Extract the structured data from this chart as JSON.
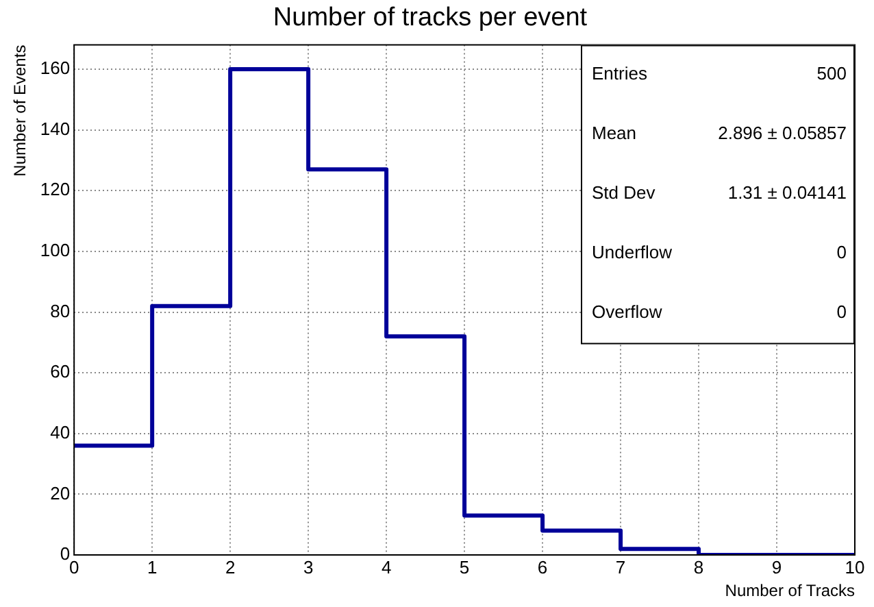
{
  "chart_data": {
    "type": "histogram",
    "title": "Number of tracks per event",
    "xlabel": "Number of Tracks",
    "ylabel": "Number of Events",
    "bins": [
      0,
      1,
      2,
      3,
      4,
      5,
      6,
      7,
      8,
      9,
      10
    ],
    "values": [
      36,
      82,
      160,
      127,
      72,
      13,
      8,
      2,
      0,
      0
    ],
    "color": "#000099",
    "xlim": [
      0,
      10
    ],
    "xticks": [
      0,
      1,
      2,
      3,
      4,
      5,
      6,
      7,
      8,
      9,
      10
    ],
    "ylim": [
      0,
      168
    ],
    "yticks": [
      0,
      20,
      40,
      60,
      80,
      100,
      120,
      140,
      160
    ],
    "grid": true,
    "annotations": [
      "Entries",
      "500",
      "Mean",
      "2.896 ± 0.05857",
      "Std Dev",
      "1.31 ± 0.04141",
      "Underflow",
      "0",
      "Overflow",
      "0"
    ]
  }
}
